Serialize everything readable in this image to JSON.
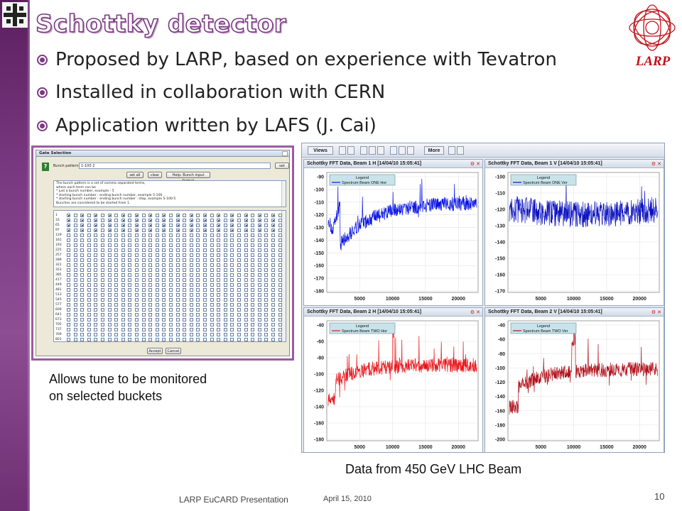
{
  "slide": {
    "title": "Schottky detector",
    "logo_text": "LARP",
    "bullets": [
      "Proposed by LARP, based on experience with Tevatron",
      "Installed in collaboration with CERN",
      "Application written by LAFS (J. Cai)"
    ],
    "caption_left_lines": [
      "Allows tune to be monitored",
      "on selected buckets"
    ],
    "caption_right": "Data from 450 GeV LHC Beam",
    "footer_left": "LARP EuCARD Presentation",
    "footer_date": "April 15, 2010",
    "page_number": "10"
  },
  "gate_dialog": {
    "title": "Gate Selection",
    "bunch_pattern_label": "Bunch pattern:",
    "bunch_pattern_value": "1-100 2",
    "set_label": "set",
    "set_all_label": "set all",
    "clear_label": "clear",
    "help_label": "Help: Bunch input format",
    "help_lines": [
      "The bunch pattern is a set of comma separated terms,",
      "where each term can be",
      "* just a bunch number, example - 5",
      "* starting bunch number - ending bunch number, example 5-100",
      "* starting bunch number - ending bunch number : step, example 5-100:5",
      "Bunches are considered to be started from 1."
    ],
    "row_labels": [
      "1",
      "33",
      "65",
      "97",
      "129",
      "161",
      "193",
      "225",
      "257",
      "289",
      "321",
      "353",
      "385",
      "417",
      "449",
      "481",
      "513",
      "545",
      "577",
      "609",
      "641",
      "673",
      "705",
      "737",
      "769",
      "801"
    ],
    "accept_label": "Accept",
    "cancel_label": "Cancel"
  },
  "app": {
    "toolbar": {
      "views_label": "Views",
      "more_label": "More"
    },
    "panels": [
      {
        "title": "Schottky FFT Data, Beam 1 H  [14/04/10 15:05:41]",
        "legend_title": "Legend",
        "legend_entry": "Spectrum Beam ONE Hor",
        "color": "#0a14e6",
        "y_ticks": [
          "-90",
          "-100",
          "-110",
          "-120",
          "-130",
          "-140",
          "-150",
          "-160",
          "-170",
          "-180"
        ],
        "x_ticks": [
          "5000",
          "10000",
          "15000",
          "20000"
        ]
      },
      {
        "title": "Schottky FFT Data, Beam 1 V  [14/04/10 15:05:41]",
        "legend_title": "Legend",
        "legend_entry": "Spectrum Beam ONE Ver",
        "color": "#0c12c0",
        "y_ticks": [
          "-100",
          "-110",
          "-120",
          "-130",
          "-140",
          "-150",
          "-160",
          "-170"
        ],
        "x_ticks": [
          "5000",
          "10000",
          "15000",
          "20000"
        ]
      },
      {
        "title": "Schottky FFT Data, Beam 2 H  [14/04/10 15:05:41]",
        "legend_title": "Legend",
        "legend_entry": "Spectrum Beam TWO Hor",
        "color": "#e8141a",
        "y_ticks": [
          "-40",
          "-60",
          "-80",
          "-100",
          "-120",
          "-140",
          "-160",
          "-180"
        ],
        "x_ticks": [
          "5000",
          "10000",
          "15000",
          "20000"
        ]
      },
      {
        "title": "Schottky FFT Data, Beam 2 V  [14/04/10 15:05:41]",
        "legend_title": "Legend",
        "legend_entry": "Spectrum Beam TWO Ver",
        "color": "#b0101a",
        "y_ticks": [
          "-40",
          "-60",
          "-80",
          "-100",
          "-120",
          "-140",
          "-160",
          "-180",
          "-200"
        ],
        "x_ticks": [
          "5000",
          "10000",
          "15000",
          "20000"
        ]
      }
    ]
  },
  "colors": {
    "accent": "#7a3a82",
    "larp_red": "#c0131a"
  }
}
